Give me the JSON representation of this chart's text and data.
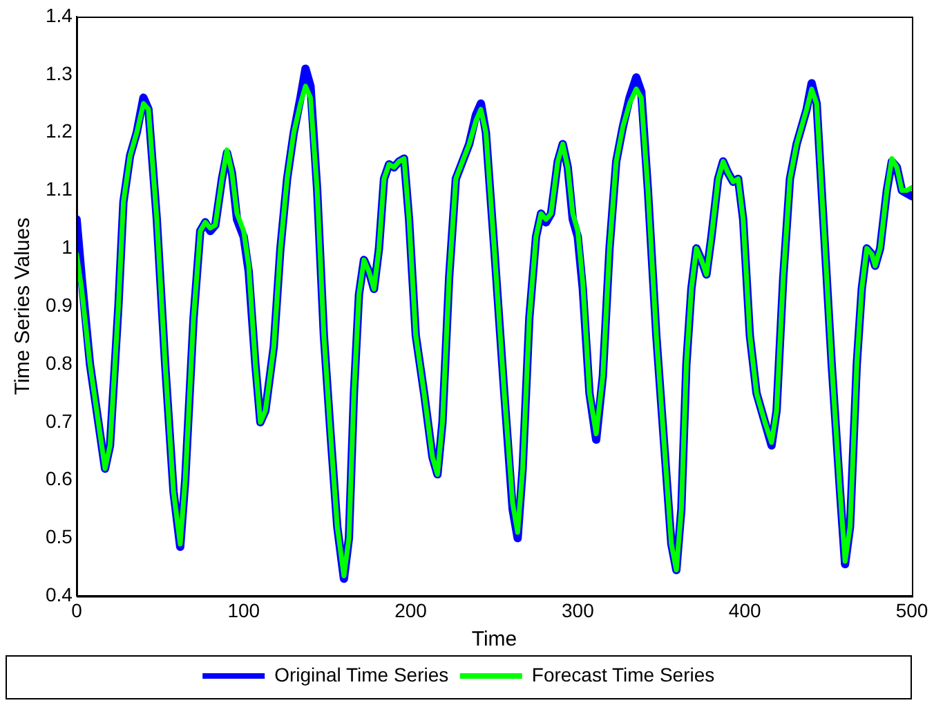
{
  "chart_data": {
    "type": "line",
    "xlabel": "Time",
    "ylabel": "Time Series Values",
    "grid": false,
    "legend": "bottom",
    "marker": "none",
    "line_style": "solid",
    "xlim": [
      0,
      500
    ],
    "xticks": [
      0,
      100,
      200,
      300,
      400,
      500
    ],
    "ylim": [
      0.4,
      1.4
    ],
    "yticks": [
      0.4,
      0.5,
      0.6,
      0.7,
      0.8,
      0.9,
      1,
      1.1,
      1.2,
      1.3,
      1.4
    ],
    "x": [
      0,
      3,
      8,
      12,
      17,
      20,
      25,
      28,
      32,
      36,
      40,
      43,
      48,
      53,
      58,
      62,
      65,
      70,
      74,
      77,
      80,
      83,
      87,
      90,
      93,
      96,
      100,
      103,
      107,
      110,
      113,
      118,
      122,
      126,
      130,
      134,
      137,
      140,
      144,
      148,
      152,
      156,
      160,
      163,
      166,
      169,
      172,
      175,
      178,
      181,
      184,
      187,
      190,
      193,
      196,
      199,
      203,
      208,
      213,
      216,
      219,
      223,
      227,
      231,
      235,
      239,
      242,
      245,
      250,
      256,
      261,
      264,
      267,
      271,
      275,
      278,
      281,
      284,
      288,
      291,
      294,
      297,
      300,
      303,
      307,
      311,
      315,
      319,
      323,
      327,
      331,
      335,
      338,
      342,
      347,
      352,
      356,
      359,
      362,
      365,
      368,
      371,
      374,
      377,
      380,
      384,
      387,
      390,
      393,
      396,
      399,
      403,
      407,
      412,
      416,
      419,
      423,
      427,
      431,
      434,
      437,
      440,
      443,
      447,
      452,
      457,
      460,
      463,
      467,
      470,
      473,
      476,
      478,
      481,
      485,
      488,
      491,
      494,
      497,
      500
    ],
    "series": [
      {
        "name": "Original Time Series",
        "color": "#0000ff",
        "values": [
          1.05,
          0.95,
          0.8,
          0.72,
          0.62,
          0.66,
          0.9,
          1.08,
          1.16,
          1.2,
          1.26,
          1.24,
          1.05,
          0.8,
          0.58,
          0.485,
          0.6,
          0.88,
          1.03,
          1.045,
          1.03,
          1.04,
          1.12,
          1.165,
          1.13,
          1.05,
          1.02,
          0.96,
          0.8,
          0.7,
          0.72,
          0.83,
          1,
          1.12,
          1.2,
          1.26,
          1.31,
          1.28,
          1.1,
          0.85,
          0.68,
          0.52,
          0.43,
          0.5,
          0.75,
          0.92,
          0.98,
          0.96,
          0.93,
          1,
          1.12,
          1.145,
          1.14,
          1.15,
          1.155,
          1.05,
          0.85,
          0.75,
          0.64,
          0.61,
          0.7,
          0.95,
          1.12,
          1.15,
          1.18,
          1.23,
          1.25,
          1.2,
          1,
          0.75,
          0.55,
          0.5,
          0.62,
          0.88,
          1.02,
          1.06,
          1.045,
          1.06,
          1.15,
          1.18,
          1.14,
          1.05,
          1.02,
          0.93,
          0.75,
          0.67,
          0.78,
          1,
          1.15,
          1.21,
          1.26,
          1.295,
          1.27,
          1.1,
          0.85,
          0.65,
          0.49,
          0.445,
          0.55,
          0.8,
          0.93,
          1,
          0.98,
          0.955,
          1.02,
          1.12,
          1.15,
          1.13,
          1.115,
          1.12,
          1.05,
          0.85,
          0.75,
          0.7,
          0.66,
          0.72,
          0.95,
          1.12,
          1.18,
          1.21,
          1.24,
          1.285,
          1.25,
          1.05,
          0.8,
          0.58,
          0.455,
          0.52,
          0.8,
          0.93,
          1,
          0.99,
          0.97,
          1,
          1.1,
          1.15,
          1.14,
          1.1,
          1.095,
          1.09
        ]
      },
      {
        "name": "Forecast Time Series",
        "color": "#00ff00",
        "values": [
          0.99,
          0.93,
          0.8,
          0.72,
          0.62,
          0.66,
          0.9,
          1.08,
          1.16,
          1.2,
          1.25,
          1.24,
          1.05,
          0.8,
          0.58,
          0.49,
          0.6,
          0.88,
          1.03,
          1.045,
          1.035,
          1.04,
          1.12,
          1.17,
          1.13,
          1.06,
          1.03,
          0.97,
          0.8,
          0.7,
          0.72,
          0.83,
          1,
          1.12,
          1.2,
          1.25,
          1.28,
          1.26,
          1.1,
          0.85,
          0.68,
          0.52,
          0.435,
          0.5,
          0.75,
          0.92,
          0.98,
          0.96,
          0.93,
          1,
          1.12,
          1.145,
          1.14,
          1.15,
          1.155,
          1.05,
          0.85,
          0.75,
          0.64,
          0.61,
          0.7,
          0.95,
          1.12,
          1.15,
          1.18,
          1.22,
          1.24,
          1.2,
          1,
          0.75,
          0.56,
          0.51,
          0.62,
          0.88,
          1.02,
          1.06,
          1.05,
          1.06,
          1.15,
          1.18,
          1.14,
          1.06,
          1.03,
          0.94,
          0.75,
          0.68,
          0.78,
          1,
          1.15,
          1.21,
          1.25,
          1.275,
          1.26,
          1.1,
          0.85,
          0.65,
          0.49,
          0.445,
          0.55,
          0.8,
          0.93,
          1,
          0.98,
          0.955,
          1.02,
          1.12,
          1.15,
          1.13,
          1.115,
          1.12,
          1.05,
          0.85,
          0.75,
          0.7,
          0.665,
          0.72,
          0.95,
          1.12,
          1.18,
          1.21,
          1.24,
          1.275,
          1.25,
          1.05,
          0.8,
          0.58,
          0.46,
          0.52,
          0.8,
          0.93,
          1,
          0.99,
          0.97,
          1,
          1.1,
          1.155,
          1.14,
          1.1,
          1.1,
          1.105
        ]
      }
    ]
  }
}
